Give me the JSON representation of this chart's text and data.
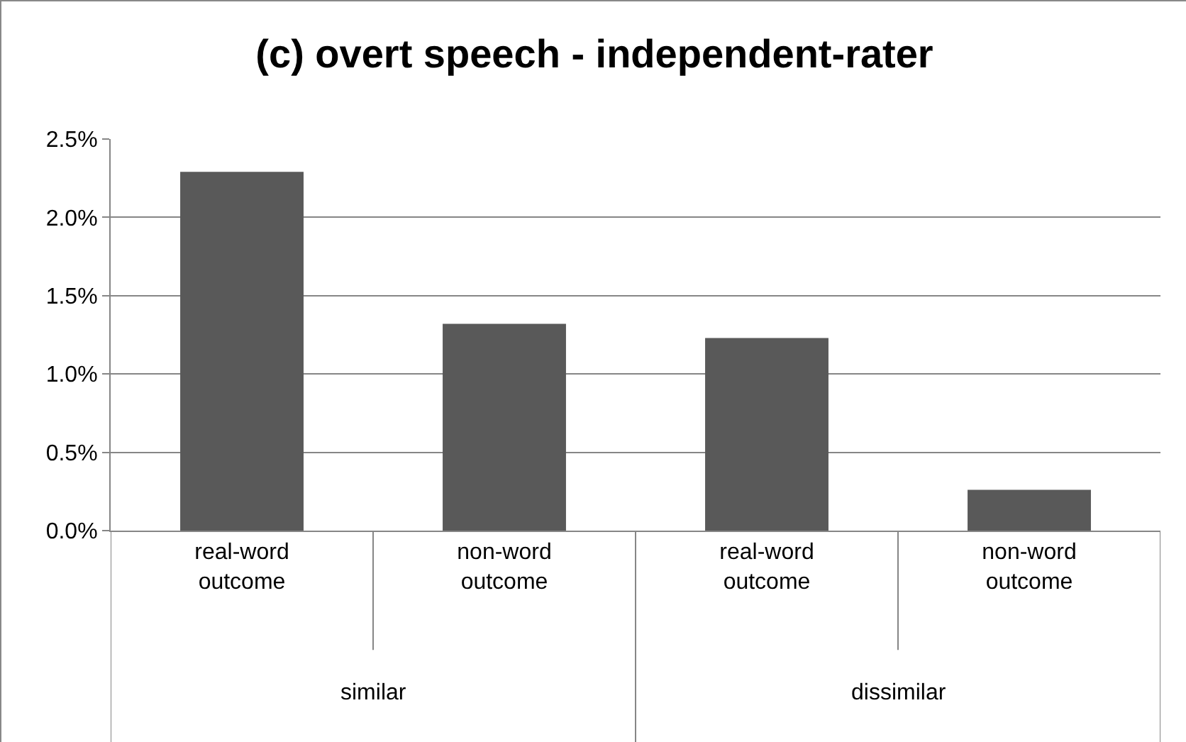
{
  "chart_data": {
    "type": "bar",
    "title": "(c) overt speech - independent-rater",
    "categories": [
      "real-word outcome",
      "non-word outcome",
      "real-word outcome",
      "non-word outcome"
    ],
    "values": [
      2.29,
      1.32,
      1.23,
      0.26
    ],
    "color": "#595959",
    "ylim": [
      0,
      2.5
    ],
    "yticks": [
      {
        "value": 0,
        "label": "0.0%"
      },
      {
        "value": 0.5,
        "label": "0.5%"
      },
      {
        "value": 1,
        "label": "1.0%"
      },
      {
        "value": 1.5,
        "label": "1.5%"
      },
      {
        "value": 2,
        "label": "2.0%"
      },
      {
        "value": 2.5,
        "label": "2.5%"
      }
    ],
    "grid": "y",
    "annotations": [
      "similar",
      "dissimilar"
    ]
  }
}
